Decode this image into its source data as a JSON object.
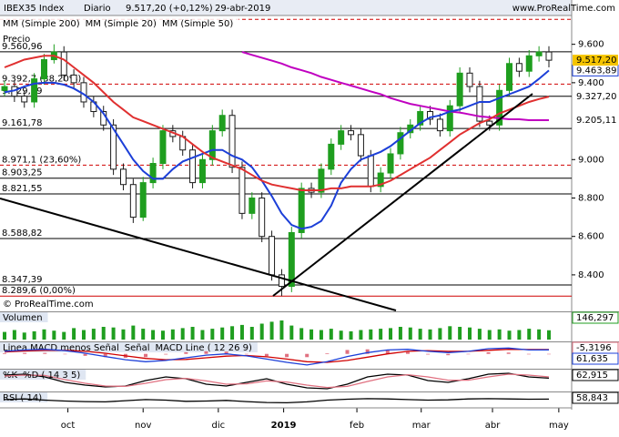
{
  "chart_data": {
    "type": "candlestick",
    "header": {
      "symbol": "IBEX35 Index",
      "period": "Diario",
      "last": "9.517,20 (+0,12%)",
      "date": "29-abr-2019"
    },
    "price_label": "Precio",
    "watermark": "© ProRealTime.com",
    "site": "www.ProRealTime.com",
    "xlim": [
      -0.46,
      57.3
    ],
    "xticks": [
      {
        "value": 6.4,
        "label": "oct"
      },
      {
        "value": 14,
        "label": "nov"
      },
      {
        "value": 21.6,
        "label": "dic"
      },
      {
        "value": 28.2,
        "label": "2019"
      },
      {
        "value": 35.6,
        "label": "feb"
      },
      {
        "value": 42.1,
        "label": "mar"
      },
      {
        "value": 49.3,
        "label": "abr"
      },
      {
        "value": 56,
        "label": "may"
      }
    ],
    "ylim": [
      8210,
      9750
    ],
    "yticks": [
      {
        "value": 9600,
        "label": "9.600"
      },
      {
        "value": 9400,
        "label": "9.400"
      },
      {
        "value": 9000,
        "label": "9.000"
      },
      {
        "value": 8800,
        "label": "8.800"
      },
      {
        "value": 8600,
        "label": "8.600"
      },
      {
        "value": 8400,
        "label": "8.400"
      }
    ],
    "up_color": "#1f9e1f",
    "down_color": "#1a1a1a",
    "last_label": "9.517,20",
    "candles": [
      [
        9360,
        9410,
        9330,
        9380
      ],
      [
        9380,
        9410,
        9300,
        9330
      ],
      [
        9330,
        9360,
        9270,
        9300
      ],
      [
        9300,
        9450,
        9270,
        9420
      ],
      [
        9420,
        9550,
        9390,
        9520
      ],
      [
        9520,
        9600,
        9500,
        9560
      ],
      [
        9560,
        9590,
        9410,
        9440
      ],
      [
        9440,
        9470,
        9370,
        9400
      ],
      [
        9400,
        9430,
        9270,
        9300
      ],
      [
        9300,
        9330,
        9220,
        9250
      ],
      [
        9250,
        9280,
        9150,
        9180
      ],
      [
        9180,
        9210,
        8920,
        8950
      ],
      [
        8950,
        8980,
        8840,
        8870
      ],
      [
        8870,
        8900,
        8670,
        8700
      ],
      [
        8700,
        8910,
        8680,
        8880
      ],
      [
        8880,
        9010,
        8850,
        8980
      ],
      [
        8980,
        9180,
        8950,
        9150
      ],
      [
        9150,
        9180,
        9090,
        9120
      ],
      [
        9120,
        9150,
        9020,
        9050
      ],
      [
        9050,
        9080,
        8850,
        8880
      ],
      [
        8880,
        9030,
        8850,
        9000
      ],
      [
        9000,
        9180,
        8970,
        9150
      ],
      [
        9150,
        9260,
        9120,
        9230
      ],
      [
        9230,
        9260,
        8930,
        8960
      ],
      [
        8960,
        8990,
        8690,
        8720
      ],
      [
        8720,
        8830,
        8690,
        8800
      ],
      [
        8800,
        8830,
        8570,
        8600
      ],
      [
        8600,
        8630,
        8370,
        8400
      ],
      [
        8400,
        8430,
        8289.6,
        8340
      ],
      [
        8340,
        8650,
        8310,
        8620
      ],
      [
        8620,
        8880,
        8590,
        8850
      ],
      [
        8850,
        8880,
        8800,
        8830
      ],
      [
        8830,
        8980,
        8800,
        8950
      ],
      [
        8950,
        9110,
        8920,
        9080
      ],
      [
        9080,
        9180,
        9050,
        9150
      ],
      [
        9150,
        9180,
        9100,
        9130
      ],
      [
        9130,
        9160,
        8990,
        9020
      ],
      [
        9020,
        9050,
        8830,
        8860
      ],
      [
        8860,
        8960,
        8830,
        8930
      ],
      [
        8930,
        9060,
        8900,
        9030
      ],
      [
        9030,
        9170,
        9000,
        9140
      ],
      [
        9140,
        9210,
        9110,
        9180
      ],
      [
        9180,
        9280,
        9150,
        9250
      ],
      [
        9250,
        9280,
        9180,
        9210
      ],
      [
        9210,
        9240,
        9120,
        9150
      ],
      [
        9150,
        9310,
        9120,
        9280
      ],
      [
        9280,
        9480,
        9250,
        9450
      ],
      [
        9450,
        9480,
        9350,
        9380
      ],
      [
        9380,
        9410,
        9170,
        9200
      ],
      [
        9200,
        9230,
        9150,
        9180
      ],
      [
        9180,
        9390,
        9150,
        9360
      ],
      [
        9360,
        9530,
        9330,
        9500
      ],
      [
        9500,
        9530,
        9430,
        9460
      ],
      [
        9460,
        9570,
        9430,
        9540
      ],
      [
        9540,
        9590,
        9510,
        9560
      ],
      [
        9560,
        9590,
        9480,
        9517.2
      ]
    ],
    "series": [
      {
        "name": "MM (Simple 200)",
        "color": "#c000c0",
        "last_label": "9.205,11",
        "values": [
          null,
          null,
          null,
          null,
          null,
          null,
          null,
          null,
          null,
          null,
          null,
          null,
          null,
          null,
          null,
          null,
          null,
          null,
          null,
          null,
          null,
          null,
          null,
          null,
          9560,
          9545,
          9530,
          9515,
          9500,
          9480,
          9465,
          9450,
          9430,
          9415,
          9400,
          9385,
          9370,
          9355,
          9340,
          9320,
          9305,
          9290,
          9280,
          9270,
          9260,
          9250,
          9245,
          9235,
          9225,
          9220,
          9215,
          9210,
          9210,
          9205,
          9205,
          9205.11
        ]
      },
      {
        "name": "MM (Simple 20)",
        "color": "#1c3fd8",
        "last_label": "9.463,89",
        "values": [
          9350,
          9360,
          9380,
          9395,
          9400,
          9400,
          9390,
          9370,
          9340,
          9300,
          9240,
          9160,
          9080,
          9000,
          8940,
          8900,
          8900,
          8950,
          8990,
          9010,
          9030,
          9050,
          9050,
          9020,
          9000,
          8960,
          8890,
          8810,
          8720,
          8660,
          8640,
          8650,
          8680,
          8760,
          8880,
          8950,
          9000,
          9020,
          9040,
          9070,
          9110,
          9150,
          9190,
          9220,
          9230,
          9250,
          9260,
          9280,
          9300,
          9300,
          9320,
          9340,
          9360,
          9380,
          9420,
          9463.89
        ]
      },
      {
        "name": "MM (Simple 50)",
        "color": "#e03030",
        "last_label": "9.327,20",
        "values": [
          9480,
          9500,
          9520,
          9530,
          9540,
          9540,
          9520,
          9480,
          9440,
          9400,
          9350,
          9300,
          9260,
          9220,
          9200,
          9180,
          9160,
          9140,
          9120,
          9080,
          9040,
          9010,
          8990,
          8970,
          8950,
          8920,
          8890,
          8870,
          8860,
          8850,
          8840,
          8840,
          8840,
          8850,
          8850,
          8860,
          8860,
          8860,
          8870,
          8890,
          8920,
          8950,
          8980,
          9010,
          9050,
          9090,
          9130,
          9160,
          9190,
          9210,
          9240,
          9260,
          9280,
          9300,
          9315,
          9327.2
        ]
      }
    ],
    "levels": [
      {
        "value": 9730,
        "label": null,
        "color": "#d00000",
        "dashed": true
      },
      {
        "value": 9560.96,
        "label": "9.560,96",
        "color": "#000000",
        "dashed": false
      },
      {
        "value": 9392.7,
        "label": "9.392,7 (38,20%)",
        "color": "#d00000",
        "dashed": true
      },
      {
        "value": 9329.19,
        "label": "9.329,19",
        "color": "#000000",
        "dashed": false
      },
      {
        "value": 9161.78,
        "label": "9.161,78",
        "color": "#000000",
        "dashed": false
      },
      {
        "value": 8971.1,
        "label": "8.971,1 (23,60%)",
        "color": "#d00000",
        "dashed": true
      },
      {
        "value": 8903.25,
        "label": "8.903,25",
        "color": "#000000",
        "dashed": false
      },
      {
        "value": 8821.55,
        "label": "8.821,55",
        "color": "#000000",
        "dashed": false
      },
      {
        "value": 8588.82,
        "label": "8.588,82",
        "color": "#000000",
        "dashed": false
      },
      {
        "value": 8347.39,
        "label": "8.347,39",
        "color": "#000000",
        "dashed": false
      },
      {
        "value": 8289.6,
        "label": "8.289,6 (0,00%)",
        "color": "#d00000",
        "dashed": false
      }
    ],
    "panels": [
      {
        "type": "bar",
        "title": "Volumen",
        "ylim": [
          0,
          400
        ],
        "series": [
          {
            "color": "#1f9e1f",
            "last_label": "146,297",
            "values": [
              120,
              150,
              110,
              130,
              160,
              140,
              120,
              180,
              150,
              170,
              200,
              190,
              160,
              220,
              170,
              150,
              140,
              160,
              180,
              200,
              150,
              170,
              190,
              210,
              230,
              200,
              250,
              280,
              300,
              220,
              180,
              160,
              150,
              170,
              140,
              130,
              150,
              160,
              170,
              180,
              200,
              190,
              170,
              160,
              180,
              210,
              200,
              190,
              170,
              150,
              160,
              140,
              150,
              170,
              160,
              146.297
            ]
          }
        ]
      },
      {
        "type": "line",
        "ylim": [
          -200,
          150
        ],
        "series": [
          {
            "name": "Linea MACD menos Señal",
            "color": "#e07080",
            "bars": true,
            "last_label": "-5,3196",
            "values": [
              10,
              15,
              15,
              -5,
              -30,
              -50,
              -60,
              -50,
              -10,
              25,
              40,
              35,
              -5,
              -35,
              -50,
              -50,
              10,
              60,
              70,
              60,
              30,
              -10,
              -20,
              0,
              25,
              20,
              -8,
              -5.3196
            ]
          },
          {
            "name": "Señal",
            "color": "#d00000",
            "values": [
              30,
              45,
              55,
              55,
              40,
              10,
              -30,
              -70,
              -90,
              -85,
              -60,
              -35,
              -25,
              -45,
              -80,
              -120,
              -130,
              -100,
              -50,
              0,
              40,
              50,
              40,
              40,
              55,
              70,
              68,
              66.95
            ]
          },
          {
            "name": "MACD Line ( 12 26 9)",
            "color": "#1c3fd8",
            "last_label": "61,635",
            "values": [
              40,
              60,
              70,
              50,
              10,
              -40,
              -90,
              -120,
              -100,
              -60,
              -20,
              0,
              -30,
              -80,
              -130,
              -170,
              -120,
              -40,
              20,
              60,
              70,
              40,
              20,
              40,
              80,
              90,
              60,
              61.635
            ]
          }
        ]
      },
      {
        "type": "line",
        "ylim": [
          0,
          100
        ],
        "series": [
          {
            "name": "%K",
            "color": "#000000",
            "last_label": "62,915",
            "values": [
              80,
              85,
              70,
              40,
              25,
              15,
              20,
              50,
              70,
              60,
              30,
              20,
              40,
              60,
              30,
              10,
              5,
              30,
              70,
              85,
              80,
              50,
              40,
              60,
              85,
              90,
              70,
              62.915
            ]
          },
          {
            "name": "%D ( 14 3 5)",
            "color": "#e07080",
            "values": [
              75,
              80,
              78,
              55,
              35,
              20,
              18,
              35,
              55,
              62,
              48,
              30,
              32,
              48,
              42,
              25,
              12,
              18,
              45,
              70,
              82,
              70,
              52,
              52,
              70,
              85,
              80,
              70
            ]
          }
        ]
      },
      {
        "type": "line",
        "ylim": [
          0,
          100
        ],
        "series": [
          {
            "name": "RSI ( 14)",
            "color": "#000000",
            "last_label": "58,843",
            "values": [
              55,
              60,
              50,
              42,
              38,
              35,
              45,
              55,
              50,
              40,
              42,
              48,
              38,
              30,
              28,
              35,
              50,
              58,
              62,
              60,
              55,
              50,
              52,
              60,
              62,
              60,
              58,
              58.843
            ]
          }
        ]
      }
    ]
  }
}
